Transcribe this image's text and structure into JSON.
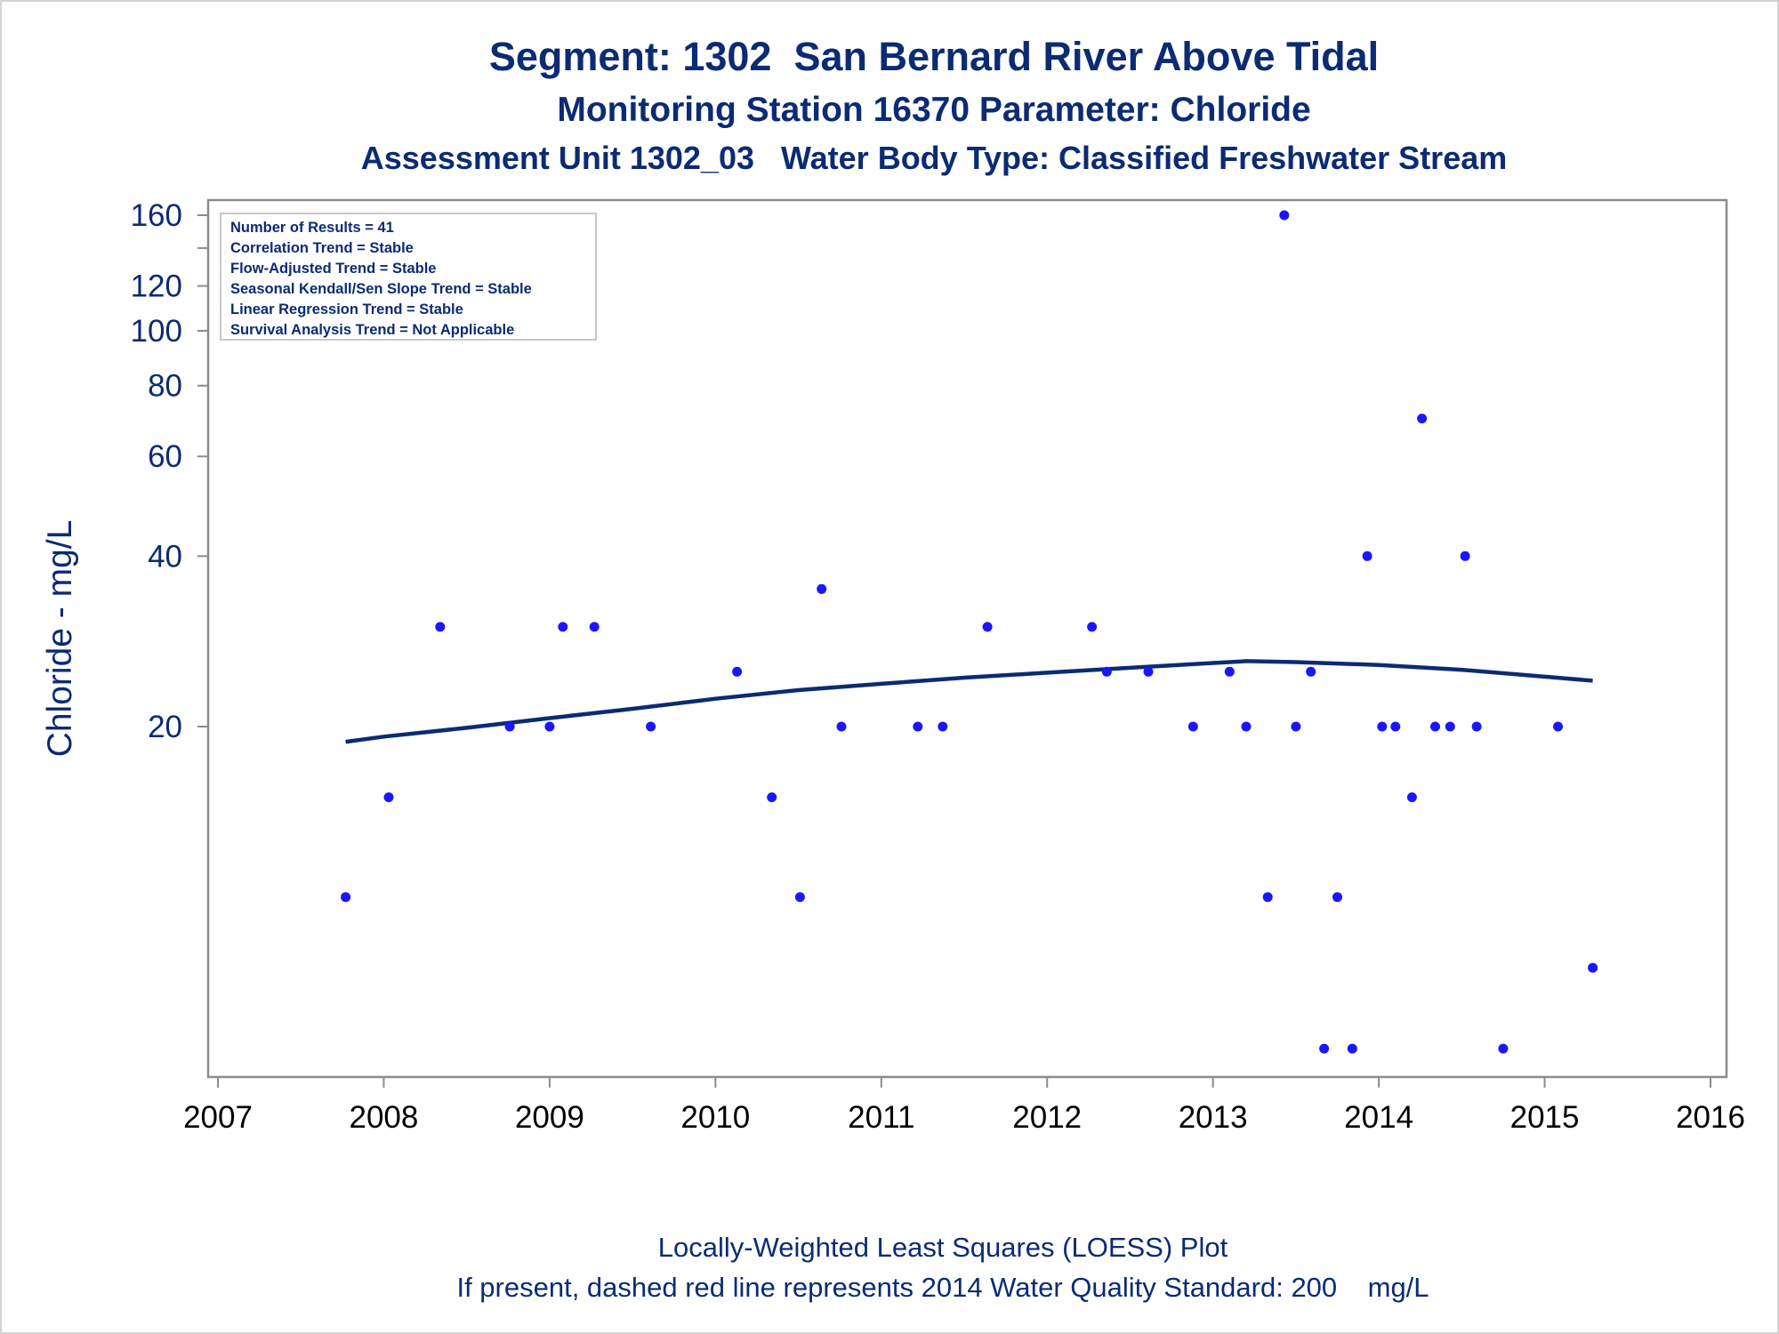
{
  "title": "Segment: 1302  San Bernard River Above Tidal",
  "subtitle1": "Monitoring Station 16370 Parameter: Chloride",
  "subtitle2": "Assessment Unit 1302_03   Water Body Type: Classified Freshwater Stream",
  "footnote1": "Locally-Weighted Least Squares (LOESS) Plot",
  "footnote2": "If present, dashed red line represents 2014 Water Quality Standard: 200    mg/L",
  "stats_box": [
    "Number of Results = 41",
    "Correlation Trend = Stable",
    "Flow-Adjusted Trend = Stable",
    "Seasonal Kendall/Sen Slope Trend = Stable",
    "Linear Regression Trend = Stable",
    "Survival Analysis Trend = Not Applicable"
  ],
  "colors": {
    "text": "#0b2b73",
    "points": "#1a16ff",
    "loess": "#0b2b73",
    "frame": "#8c8c8c"
  },
  "chart_data": {
    "type": "scatter",
    "title": "Segment: 1302  San Bernard River Above Tidal",
    "xlabel": "",
    "ylabel": "Chloride - mg/L",
    "y_scale": "log",
    "xlim": [
      2007,
      2016
    ],
    "ylim": [
      5.2,
      165
    ],
    "x_ticks": [
      2007,
      2008,
      2009,
      2010,
      2011,
      2012,
      2013,
      2014,
      2015,
      2016
    ],
    "y_ticks": [
      20,
      40,
      60,
      80,
      100,
      120,
      160
    ],
    "grid": false,
    "series": [
      {
        "name": "",
        "kind": "points",
        "x": [
          2007.77,
          2008.03,
          2008.34,
          2008.76,
          2009.0,
          2009.08,
          2009.27,
          2009.61,
          2010.13,
          2010.34,
          2010.51,
          2010.64,
          2010.76,
          2011.22,
          2011.37,
          2011.64,
          2012.27,
          2012.36,
          2012.61,
          2012.88,
          2013.1,
          2013.2,
          2013.33,
          2013.43,
          2013.5,
          2013.59,
          2013.67,
          2013.75,
          2013.84,
          2013.93,
          2014.02,
          2014.1,
          2014.2,
          2014.26,
          2014.34,
          2014.43,
          2014.52,
          2014.59,
          2014.75,
          2015.08,
          2015.29
        ],
        "y": [
          10,
          15,
          30,
          20,
          20,
          30,
          30,
          20,
          25,
          15,
          10,
          35,
          20,
          20,
          20,
          30,
          30,
          25,
          25,
          20,
          25,
          20,
          10,
          160,
          20,
          25,
          5.4,
          10,
          5.4,
          40,
          20,
          20,
          15,
          70,
          20,
          20,
          40,
          20,
          5.4,
          20,
          7.5
        ]
      },
      {
        "name": "",
        "kind": "loess",
        "x": [
          2007.77,
          2008.0,
          2008.5,
          2009.0,
          2009.5,
          2010.0,
          2010.5,
          2011.0,
          2011.5,
          2012.0,
          2012.5,
          2013.0,
          2013.2,
          2013.5,
          2014.0,
          2014.5,
          2015.0,
          2015.29
        ],
        "y": [
          18.8,
          19.2,
          19.9,
          20.7,
          21.5,
          22.4,
          23.2,
          23.8,
          24.4,
          24.9,
          25.4,
          25.9,
          26.1,
          26.0,
          25.7,
          25.2,
          24.5,
          24.1
        ]
      }
    ]
  }
}
